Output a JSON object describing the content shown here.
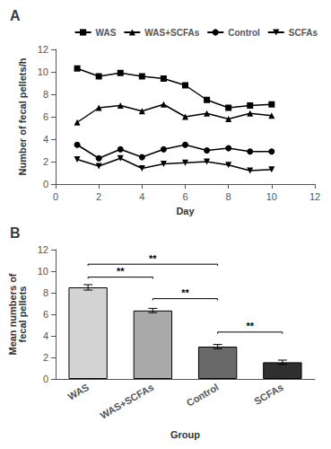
{
  "chart_data": [
    {
      "type": "line",
      "title": "A",
      "xlabel": "Day",
      "ylabel": "Number of fecal pellets/h",
      "x": [
        1,
        2,
        3,
        4,
        5,
        6,
        7,
        8,
        9,
        10
      ],
      "xlim": [
        0,
        12
      ],
      "ylim": [
        0,
        12
      ],
      "xticks": [
        0,
        2,
        4,
        6,
        8,
        10,
        12
      ],
      "yticks": [
        0,
        2,
        4,
        6,
        8,
        10,
        12
      ],
      "grid": false,
      "legend": "upper right",
      "series": [
        {
          "name": "WAS",
          "color": "black",
          "marker": "square",
          "values": [
            10.3,
            9.6,
            9.9,
            9.6,
            9.4,
            8.8,
            7.5,
            6.8,
            7.0,
            7.1
          ]
        },
        {
          "name": "WAS+SCFAs",
          "color": "black",
          "marker": "triangle",
          "values": [
            5.5,
            6.8,
            7.0,
            6.5,
            7.1,
            6.0,
            6.3,
            5.8,
            6.3,
            6.1
          ]
        },
        {
          "name": "Control",
          "color": "black",
          "marker": "circle",
          "values": [
            3.5,
            2.3,
            3.1,
            2.4,
            3.1,
            3.5,
            3.0,
            3.2,
            2.9,
            2.9
          ]
        },
        {
          "name": "SCFAs",
          "color": "black",
          "marker": "triangle-down",
          "values": [
            2.2,
            1.6,
            2.3,
            1.4,
            1.8,
            1.9,
            2.0,
            1.7,
            1.2,
            1.3
          ]
        }
      ]
    },
    {
      "type": "bar",
      "title": "B",
      "xlabel": "Group",
      "ylabel": "Mean numbers of\nfecal pellets",
      "categories": [
        "WAS",
        "WAS+SCFAs",
        "Control",
        "SCFAs"
      ],
      "values": [
        8.5,
        6.35,
        3.0,
        1.55
      ],
      "errors": [
        0.25,
        0.2,
        0.2,
        0.2
      ],
      "colors": [
        "#d3d3d3",
        "#a9a9a9",
        "#696969",
        "#2f2f2f"
      ],
      "ylim": [
        0,
        12
      ],
      "yticks": [
        0,
        2,
        4,
        6,
        8,
        10,
        12
      ],
      "grid": false,
      "annotations": [
        {
          "x1": "WAS",
          "x2": "Control",
          "y": 10.5,
          "text": "**"
        },
        {
          "x1": "WAS",
          "x2": "WAS+SCFAs",
          "y": 9.3,
          "text": "**"
        },
        {
          "x1": "WAS+SCFAs",
          "x2": "Control",
          "y": 7.3,
          "text": "**"
        },
        {
          "x1": "Control",
          "x2": "SCFAs",
          "y": 4.2,
          "text": "**"
        }
      ]
    }
  ]
}
